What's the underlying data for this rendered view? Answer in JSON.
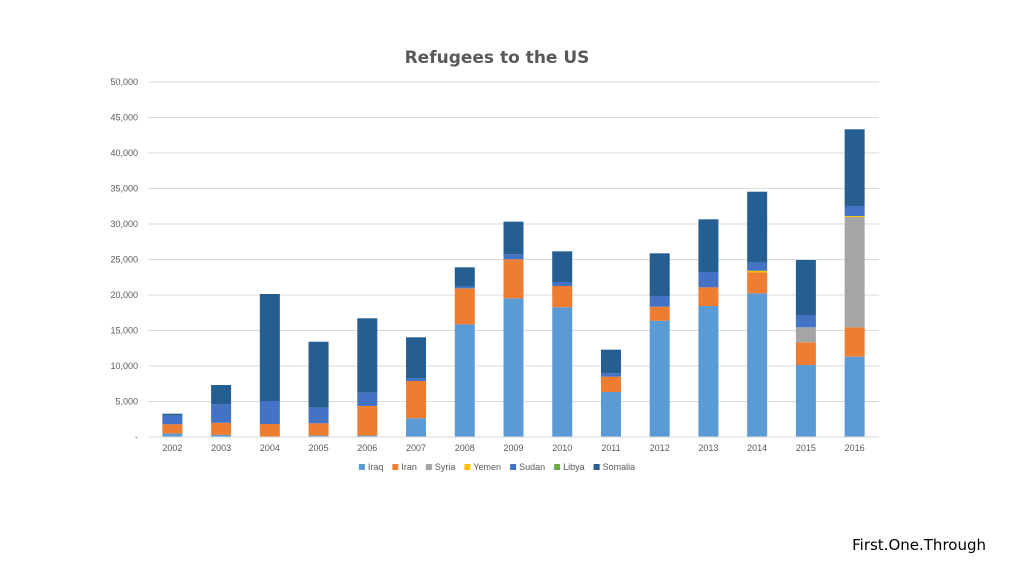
{
  "watermark": "First.One.Through",
  "chart_data": {
    "type": "bar",
    "stacked": true,
    "title": "Refugees to the US",
    "xlabel": "",
    "ylabel": "",
    "ylim": [
      0,
      50000
    ],
    "yticks": [
      0,
      5000,
      10000,
      15000,
      20000,
      25000,
      30000,
      35000,
      40000,
      45000,
      50000
    ],
    "ytick_labels": [
      "-",
      "5,000",
      "10,000",
      "15,000",
      "20,000",
      "25,000",
      "30,000",
      "35,000",
      "40,000",
      "45,000",
      "50,000"
    ],
    "grid": true,
    "legend_position": "bottom",
    "categories": [
      "2002",
      "2003",
      "2004",
      "2005",
      "2006",
      "2007",
      "2008",
      "2009",
      "2010",
      "2011",
      "2012",
      "2013",
      "2014",
      "2015",
      "2016"
    ],
    "series": [
      {
        "name": "Iraq",
        "color": "#5b9bd5",
        "values": [
          500,
          300,
          70,
          200,
          200,
          2630,
          15870,
          19530,
          18270,
          6340,
          16380,
          18450,
          20230,
          10140,
          11310
        ]
      },
      {
        "name": "Iran",
        "color": "#ed7d31",
        "values": [
          1300,
          1700,
          1760,
          1730,
          4170,
          5250,
          5070,
          5500,
          3000,
          2160,
          1970,
          2630,
          2960,
          3200,
          4140
        ]
      },
      {
        "name": "Syria",
        "color": "#a5a5a5",
        "values": [
          0,
          0,
          0,
          0,
          0,
          0,
          0,
          0,
          0,
          0,
          0,
          0,
          0,
          2110,
          15540
        ]
      },
      {
        "name": "Yemen",
        "color": "#ffc000",
        "values": [
          0,
          0,
          0,
          0,
          0,
          0,
          0,
          0,
          0,
          0,
          0,
          0,
          230,
          0,
          140
        ]
      },
      {
        "name": "Sudan",
        "color": "#4472c4",
        "values": [
          1200,
          2600,
          3240,
          2200,
          1870,
          380,
          230,
          700,
          560,
          470,
          1510,
          2160,
          1130,
          1730,
          1410
        ]
      },
      {
        "name": "Libya",
        "color": "#70ad47",
        "values": [
          0,
          0,
          0,
          0,
          0,
          0,
          0,
          0,
          0,
          0,
          0,
          0,
          0,
          0,
          0
        ]
      },
      {
        "name": "Somalia",
        "color": "#255e91",
        "values": [
          280,
          2720,
          15070,
          9290,
          10480,
          5780,
          2730,
          4600,
          4320,
          3330,
          6010,
          7420,
          10000,
          7750,
          10800
        ]
      }
    ]
  }
}
